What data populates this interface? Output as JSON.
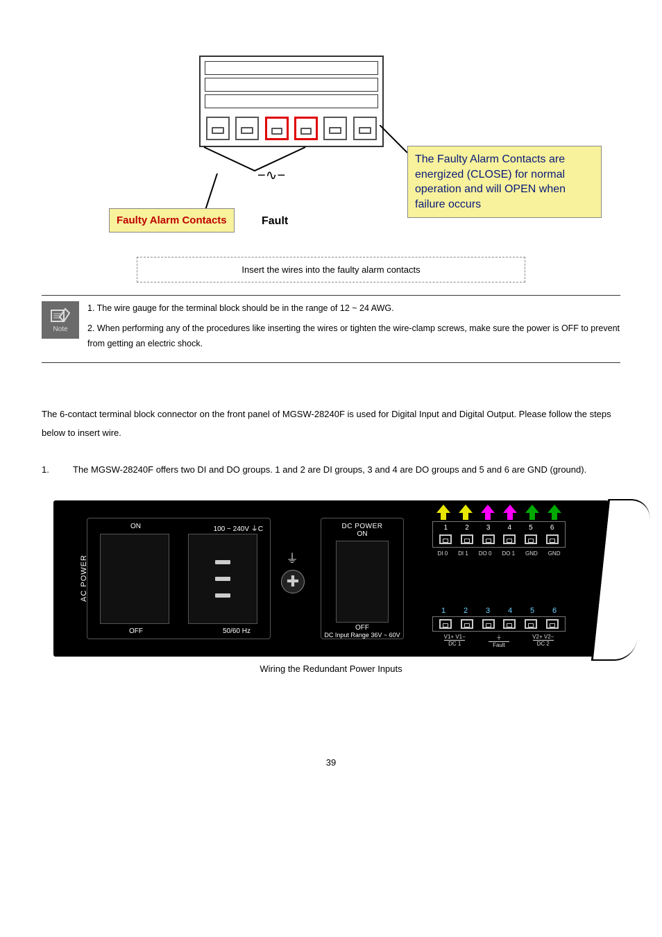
{
  "figure1": {
    "callout_left": "Faulty Alarm Contacts",
    "callout_right": "The  Faulty Alarm Contacts are energized (CLOSE) for normal operation and will OPEN when failure occurs",
    "fault_label": "Fault",
    "fault_symbol": "−∿−",
    "caption": "Insert the wires into the faulty alarm contacts",
    "callout_bg": "#f7f29b",
    "callout_left_color": "#c00000",
    "callout_right_color": "#0a1a7a",
    "highlight_border": "#e00000"
  },
  "note": {
    "icon_label": "Note",
    "item1": "1. The wire gauge for the terminal block should be in the range of 12 ~ 24 AWG.",
    "item2": "2. When performing any of the procedures like inserting the wires or tighten the wire-clamp screws, make sure the power is OFF to prevent from getting an electric shock."
  },
  "intro": "The 6-contact terminal block connector on the front panel of MGSW-28240F is used for Digital Input and Digital Output. Please follow the steps below to insert wire.",
  "step1": {
    "num": "1.",
    "text": "The MGSW-28240F offers two DI and DO groups. 1 and 2 are DI groups, 3 and 4 are DO groups and 5 and 6 are GND (ground)."
  },
  "panel": {
    "ac_section": "AC POWER",
    "ac_on": "ON",
    "ac_volt": "100 ~ 240V ⏚C",
    "ac_off": "OFF",
    "ac_hz": "50/60 Hz",
    "gnd_symbol": "⏚",
    "dc_title": "DC POWER",
    "dc_on": "ON",
    "dc_off": "OFF",
    "dc_range": "DC Input Range 36V ~ 60V",
    "dido_nums": [
      "1",
      "2",
      "3",
      "4",
      "5",
      "6"
    ],
    "dido_labels": [
      "DI 0",
      "DI 1",
      "DO 0",
      "DO 1",
      "GND",
      "GND"
    ],
    "arrow_colors": [
      "#e6e600",
      "#e6e600",
      "#ff00ff",
      "#ff00ff",
      "#00a800",
      "#00a800"
    ],
    "dc_nums_color": "#6bd0ff",
    "dc_nums": [
      "1",
      "2",
      "3",
      "4",
      "5",
      "6"
    ],
    "dc_seg1_top": "V1+  V1−",
    "dc_seg1_bot": "DC 1",
    "dc_seg2_top": "⏚",
    "dc_seg2_bot": "Fault",
    "dc_seg3_top": "V2+  V2−",
    "dc_seg3_bot": "DC 2"
  },
  "fig2_caption": "Wiring the Redundant Power Inputs",
  "page_number": "39"
}
